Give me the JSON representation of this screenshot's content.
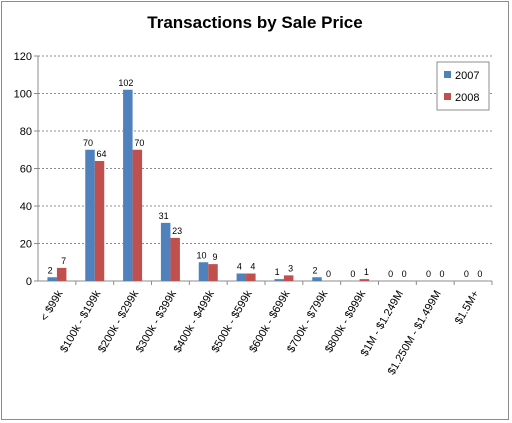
{
  "chart_data": {
    "type": "bar",
    "title": "Transactions by Sale Price",
    "xlabel": "",
    "ylabel": "",
    "ylim": [
      0,
      120
    ],
    "yticks": [
      0,
      20,
      40,
      60,
      80,
      100,
      120
    ],
    "grid": true,
    "legend_position": "right",
    "categories": [
      "< $99k",
      "$100k - $199k",
      "$200k - $299k",
      "$300k - $399k",
      "$400k - $499k",
      "$500k - $599k",
      "$600k - $699k",
      "$700k - $799k",
      "$800k - $999k",
      "$1M - $1.249M",
      "$1.250M - $1.499M",
      "$1.5M+"
    ],
    "series": [
      {
        "name": "2007",
        "color": "#4f81bd",
        "values": [
          2,
          70,
          102,
          31,
          10,
          4,
          1,
          2,
          0,
          0,
          0,
          0
        ]
      },
      {
        "name": "2008",
        "color": "#c0504d",
        "values": [
          7,
          64,
          70,
          23,
          9,
          4,
          3,
          0,
          1,
          0,
          0,
          0
        ]
      }
    ]
  }
}
